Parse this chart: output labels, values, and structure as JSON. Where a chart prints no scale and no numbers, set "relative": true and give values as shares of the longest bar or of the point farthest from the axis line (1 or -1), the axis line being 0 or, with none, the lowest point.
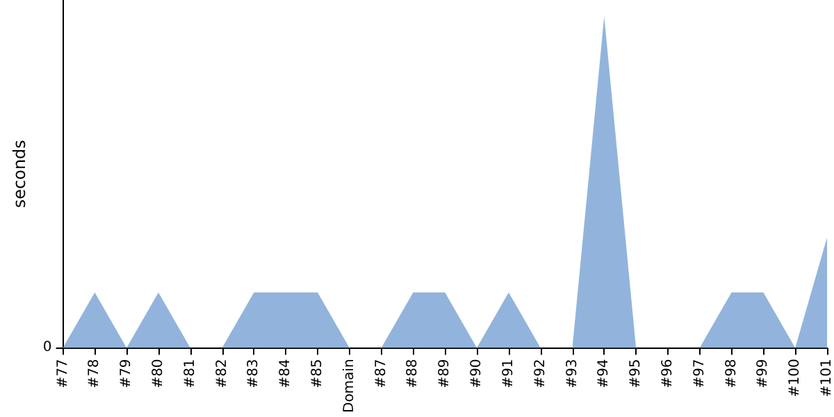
{
  "chart_data": {
    "type": "area",
    "ylabel": "seconds",
    "relative": true,
    "annotations": [
      "0"
    ],
    "color": "#92b4dc",
    "grid": false,
    "categories": [
      "#77",
      "#78",
      "#79",
      "#80",
      "#81",
      "#82",
      "#83",
      "#84",
      "#85",
      "Domain",
      "#87",
      "#88",
      "#89",
      "#90",
      "#91",
      "#92",
      "#93",
      "#94",
      "#95",
      "#96",
      "#97",
      "#98",
      "#99",
      "#100",
      "#101"
    ],
    "values": [
      0,
      0.167,
      0,
      0.167,
      0,
      0,
      0.167,
      0.167,
      0.167,
      0,
      0,
      0.167,
      0.167,
      0,
      0.167,
      0,
      0,
      1,
      0,
      0,
      0,
      0.167,
      0.167,
      0,
      0.333
    ]
  }
}
